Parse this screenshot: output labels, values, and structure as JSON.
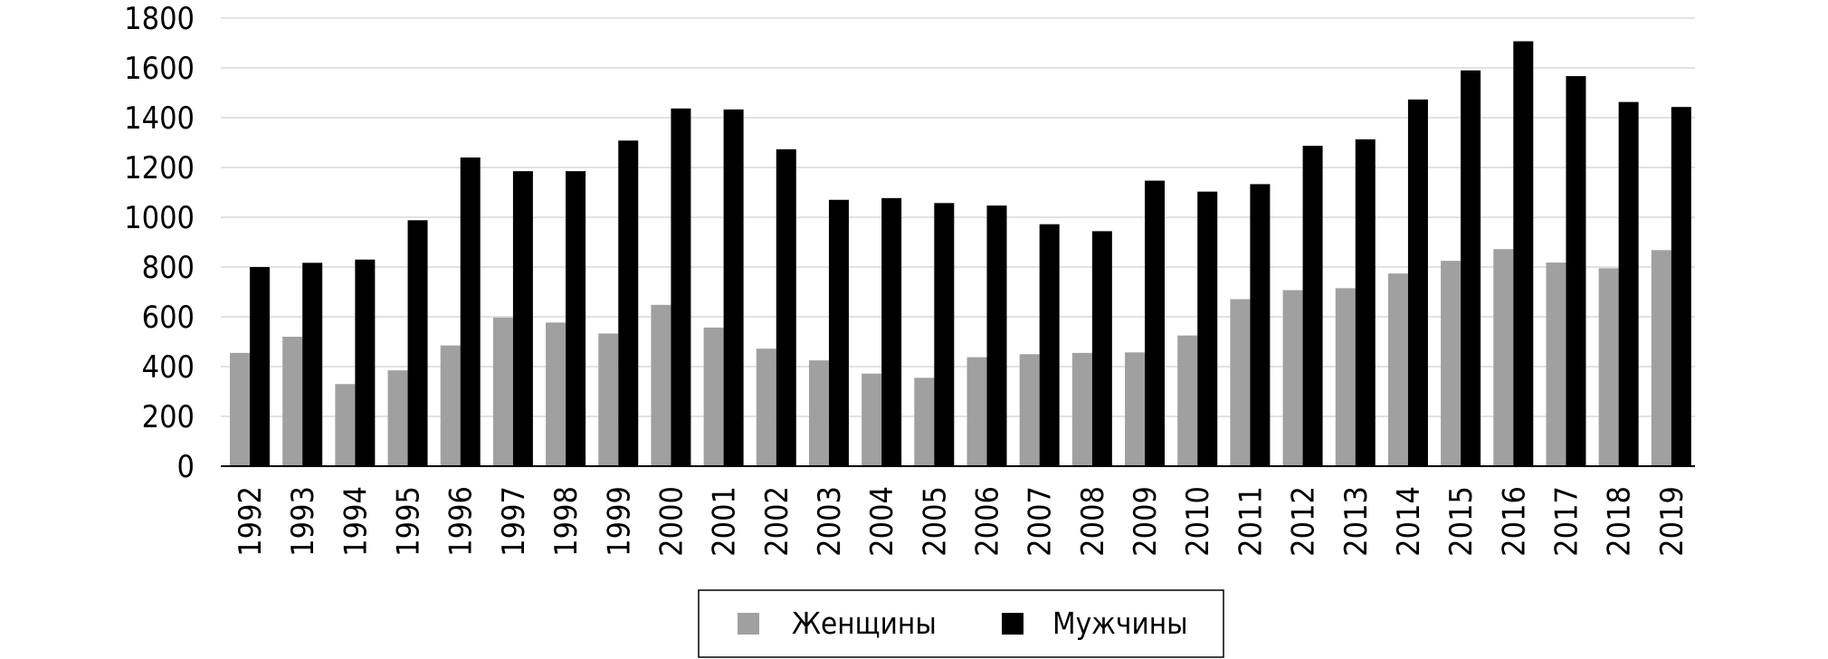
{
  "chart_data": {
    "type": "bar",
    "categories": [
      "1992",
      "1993",
      "1994",
      "1995",
      "1996",
      "1997",
      "1998",
      "1999",
      "2000",
      "2001",
      "2002",
      "2003",
      "2004",
      "2005",
      "2006",
      "2007",
      "2008",
      "2009",
      "2010",
      "2011",
      "2012",
      "2013",
      "2014",
      "2015",
      "2016",
      "2017",
      "2018",
      "2019"
    ],
    "series": [
      {
        "name": "Женщины",
        "color": "#a0a0a0",
        "values": [
          455,
          520,
          330,
          385,
          485,
          597,
          577,
          533,
          648,
          557,
          472,
          425,
          372,
          355,
          438,
          450,
          455,
          457,
          525,
          671,
          707,
          715,
          774,
          825,
          872,
          818,
          795,
          868
        ]
      },
      {
        "name": "Мужчины",
        "color": "#000000",
        "values": [
          800,
          817,
          830,
          988,
          1240,
          1185,
          1185,
          1308,
          1437,
          1433,
          1273,
          1070,
          1077,
          1057,
          1047,
          972,
          944,
          1147,
          1103,
          1133,
          1287,
          1313,
          1473,
          1590,
          1707,
          1567,
          1463,
          1443
        ]
      }
    ],
    "ylim": [
      0,
      1800
    ],
    "yticks": [
      "0",
      "200",
      "400",
      "600",
      "800",
      "1000",
      "1200",
      "1400",
      "1600",
      "1800"
    ],
    "grid": true,
    "legend_position": "bottom"
  }
}
